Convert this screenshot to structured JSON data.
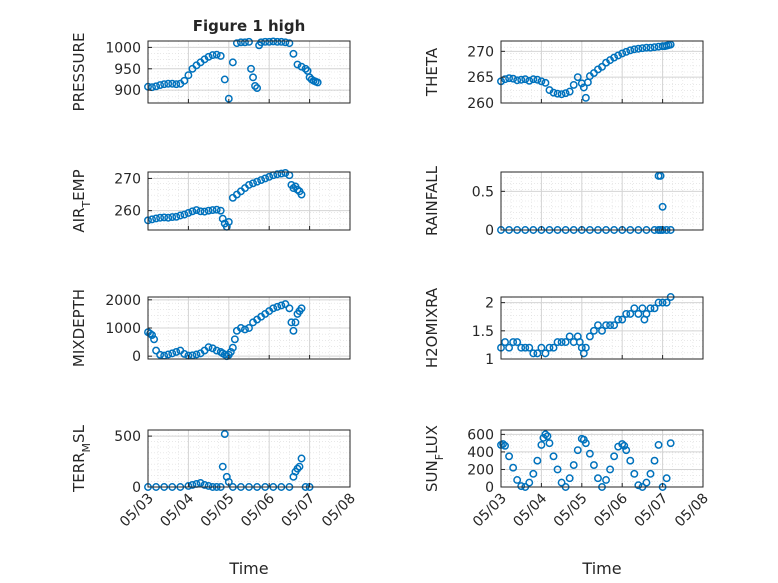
{
  "chart_data": [
    {
      "id": "pressure",
      "type": "scatter",
      "title": "Figure 1 high",
      "ylabel": "PRESSURE",
      "ylabel_sub": "",
      "ylabel_suffix": "",
      "xlabel": "",
      "xlim": [
        0,
        5
      ],
      "ylim": [
        870,
        1015
      ],
      "yticks": [
        900,
        950,
        1000
      ],
      "ytick_labels": [
        "900",
        "950",
        "1000"
      ],
      "xticks": [
        0,
        1,
        2,
        3,
        4,
        5
      ],
      "xtick_labels": [],
      "x": [
        0.0,
        0.1,
        0.2,
        0.3,
        0.4,
        0.5,
        0.6,
        0.7,
        0.8,
        0.9,
        1.0,
        1.1,
        1.2,
        1.3,
        1.4,
        1.5,
        1.6,
        1.7,
        1.8,
        1.9,
        2.0,
        2.1,
        2.2,
        2.3,
        2.4,
        2.5,
        2.55,
        2.6,
        2.65,
        2.7,
        2.75,
        2.8,
        2.9,
        3.0,
        3.1,
        3.2,
        3.3,
        3.4,
        3.5,
        3.6,
        3.7,
        3.8,
        3.9,
        3.95,
        4.0,
        4.05,
        4.1,
        4.15,
        4.2
      ],
      "y": [
        908,
        907,
        909,
        912,
        914,
        915,
        915,
        914,
        915,
        922,
        935,
        950,
        958,
        965,
        972,
        978,
        982,
        983,
        980,
        925,
        880,
        965,
        1010,
        1012,
        1012,
        1013,
        950,
        930,
        910,
        905,
        1005,
        1012,
        1013,
        1013,
        1014,
        1013,
        1013,
        1012,
        1010,
        985,
        960,
        955,
        950,
        945,
        930,
        925,
        922,
        920,
        918
      ]
    },
    {
      "id": "theta",
      "type": "scatter",
      "title": "",
      "ylabel": "THETA",
      "ylabel_sub": "",
      "ylabel_suffix": "",
      "xlabel": "",
      "xlim": [
        0,
        5
      ],
      "ylim": [
        260,
        272
      ],
      "yticks": [
        260,
        265,
        270
      ],
      "ytick_labels": [
        "260",
        "265",
        "270"
      ],
      "xticks": [
        0,
        1,
        2,
        3,
        4,
        5
      ],
      "xtick_labels": [],
      "x": [
        0.0,
        0.1,
        0.2,
        0.3,
        0.4,
        0.5,
        0.6,
        0.7,
        0.8,
        0.9,
        1.0,
        1.1,
        1.2,
        1.3,
        1.4,
        1.5,
        1.6,
        1.7,
        1.8,
        1.9,
        2.0,
        2.05,
        2.1,
        2.15,
        2.2,
        2.3,
        2.4,
        2.5,
        2.6,
        2.7,
        2.8,
        2.9,
        3.0,
        3.1,
        3.2,
        3.3,
        3.4,
        3.5,
        3.6,
        3.7,
        3.8,
        3.9,
        4.0,
        4.05,
        4.1,
        4.15,
        4.2
      ],
      "y": [
        264.2,
        264.6,
        264.8,
        264.7,
        264.4,
        264.5,
        264.6,
        264.3,
        264.6,
        264.5,
        264.2,
        263.9,
        262.5,
        262.0,
        261.8,
        261.7,
        261.9,
        262.2,
        263.5,
        265.0,
        263.8,
        263.0,
        261.0,
        264.0,
        265.2,
        265.8,
        266.5,
        267.0,
        267.8,
        268.3,
        268.8,
        269.2,
        269.6,
        269.9,
        270.2,
        270.4,
        270.5,
        270.6,
        270.7,
        270.7,
        270.8,
        270.9,
        271.0,
        271.0,
        271.1,
        271.2,
        271.3
      ]
    },
    {
      "id": "air_temp",
      "type": "scatter",
      "title": "",
      "ylabel": "AIR",
      "ylabel_sub": "T",
      "ylabel_suffix": "EMP",
      "xlabel": "",
      "xlim": [
        0,
        5
      ],
      "ylim": [
        254,
        272
      ],
      "yticks": [
        260,
        270
      ],
      "ytick_labels": [
        "260",
        "270"
      ],
      "xticks": [
        0,
        1,
        2,
        3,
        4,
        5
      ],
      "xtick_labels": [],
      "x": [
        0.0,
        0.1,
        0.2,
        0.3,
        0.4,
        0.5,
        0.6,
        0.7,
        0.8,
        0.9,
        1.0,
        1.1,
        1.2,
        1.3,
        1.4,
        1.5,
        1.6,
        1.7,
        1.8,
        1.85,
        1.9,
        1.95,
        2.0,
        2.1,
        2.2,
        2.3,
        2.4,
        2.5,
        2.6,
        2.7,
        2.8,
        2.9,
        3.0,
        3.1,
        3.2,
        3.3,
        3.4,
        3.5,
        3.55,
        3.6,
        3.65,
        3.7,
        3.75,
        3.8
      ],
      "y": [
        257.0,
        257.3,
        257.6,
        257.8,
        257.9,
        257.8,
        258.0,
        258.1,
        258.5,
        258.8,
        259.3,
        259.8,
        260.2,
        259.8,
        259.7,
        260.0,
        260.2,
        260.3,
        260.0,
        257.5,
        256.0,
        255.0,
        256.5,
        264.0,
        265.0,
        266.0,
        267.0,
        268.0,
        268.5,
        269.0,
        269.5,
        270.0,
        270.5,
        271.0,
        271.3,
        271.5,
        271.7,
        271.0,
        268.0,
        267.0,
        267.5,
        266.5,
        266.0,
        265.0
      ]
    },
    {
      "id": "rainfall",
      "type": "scatter",
      "title": "",
      "ylabel": "RAINFALL",
      "ylabel_sub": "",
      "ylabel_suffix": "",
      "xlabel": "",
      "xlim": [
        0,
        5
      ],
      "ylim": [
        0,
        0.75
      ],
      "yticks": [
        0,
        0.5
      ],
      "ytick_labels": [
        "0",
        "0.5"
      ],
      "xticks": [
        0,
        1,
        2,
        3,
        4,
        5
      ],
      "xtick_labels": [],
      "x": [
        0.0,
        0.2,
        0.4,
        0.6,
        0.8,
        1.0,
        1.2,
        1.4,
        1.6,
        1.8,
        2.0,
        2.2,
        2.4,
        2.6,
        2.8,
        3.0,
        3.2,
        3.4,
        3.6,
        3.8,
        3.9,
        3.95,
        4.0,
        3.9,
        3.95,
        4.0,
        4.1,
        4.2
      ],
      "y": [
        0,
        0,
        0,
        0,
        0,
        0,
        0,
        0,
        0,
        0,
        0,
        0,
        0,
        0,
        0,
        0,
        0,
        0,
        0,
        0,
        0,
        0,
        0,
        0.7,
        0.7,
        0.3,
        0,
        0
      ]
    },
    {
      "id": "mixdepth",
      "type": "scatter",
      "title": "",
      "ylabel": "MIXDEPTH",
      "ylabel_sub": "",
      "ylabel_suffix": "",
      "xlabel": "",
      "xlim": [
        0,
        5
      ],
      "ylim": [
        -100,
        2100
      ],
      "yticks": [
        0,
        1000,
        2000
      ],
      "ytick_labels": [
        "0",
        "1000",
        "2000"
      ],
      "xticks": [
        0,
        1,
        2,
        3,
        4,
        5
      ],
      "xtick_labels": [],
      "x": [
        0.0,
        0.05,
        0.1,
        0.15,
        0.2,
        0.3,
        0.4,
        0.5,
        0.6,
        0.7,
        0.8,
        0.9,
        1.0,
        1.1,
        1.2,
        1.3,
        1.4,
        1.5,
        1.6,
        1.7,
        1.8,
        1.85,
        1.9,
        1.95,
        2.0,
        2.05,
        2.1,
        2.15,
        2.2,
        2.3,
        2.4,
        2.5,
        2.6,
        2.7,
        2.8,
        2.9,
        3.0,
        3.1,
        3.2,
        3.3,
        3.4,
        3.5,
        3.55,
        3.6,
        3.65,
        3.7,
        3.75,
        3.8
      ],
      "y": [
        850,
        800,
        750,
        600,
        200,
        50,
        20,
        60,
        100,
        150,
        200,
        80,
        20,
        30,
        60,
        100,
        200,
        320,
        280,
        200,
        150,
        100,
        60,
        0,
        50,
        150,
        300,
        600,
        900,
        1000,
        950,
        1000,
        1200,
        1300,
        1400,
        1500,
        1600,
        1700,
        1750,
        1800,
        1850,
        1700,
        1200,
        900,
        1200,
        1500,
        1600,
        1700
      ]
    },
    {
      "id": "h2omixra",
      "type": "scatter",
      "title": "",
      "ylabel": "H2OMIXRA",
      "ylabel_sub": "",
      "ylabel_suffix": "",
      "xlabel": "",
      "xlim": [
        0,
        5
      ],
      "ylim": [
        1,
        2.1
      ],
      "yticks": [
        1,
        1.5,
        2
      ],
      "ytick_labels": [
        "1",
        "1.5",
        "2"
      ],
      "xticks": [
        0,
        1,
        2,
        3,
        4,
        5
      ],
      "xtick_labels": [],
      "x": [
        0.0,
        0.1,
        0.2,
        0.3,
        0.4,
        0.5,
        0.6,
        0.7,
        0.8,
        0.9,
        1.0,
        1.1,
        1.2,
        1.3,
        1.4,
        1.5,
        1.6,
        1.7,
        1.8,
        1.9,
        1.95,
        2.0,
        2.05,
        2.1,
        2.2,
        2.3,
        2.4,
        2.5,
        2.6,
        2.7,
        2.8,
        2.9,
        3.0,
        3.1,
        3.2,
        3.3,
        3.4,
        3.5,
        3.55,
        3.6,
        3.7,
        3.8,
        3.9,
        4.0,
        4.1,
        4.2
      ],
      "y": [
        1.2,
        1.3,
        1.2,
        1.3,
        1.3,
        1.2,
        1.2,
        1.2,
        1.1,
        1.1,
        1.2,
        1.1,
        1.2,
        1.2,
        1.3,
        1.3,
        1.3,
        1.4,
        1.3,
        1.4,
        1.3,
        1.2,
        1.1,
        1.2,
        1.4,
        1.5,
        1.6,
        1.5,
        1.6,
        1.6,
        1.6,
        1.7,
        1.7,
        1.8,
        1.8,
        1.9,
        1.8,
        1.9,
        1.7,
        1.8,
        1.9,
        1.9,
        2.0,
        2.0,
        2.0,
        2.1
      ]
    },
    {
      "id": "terr_msl",
      "type": "scatter",
      "title": "",
      "ylabel": "TERR",
      "ylabel_sub": "M",
      "ylabel_suffix": "SL",
      "xlabel": "Time",
      "xlim": [
        0,
        5
      ],
      "ylim": [
        0,
        560
      ],
      "yticks": [
        0,
        500
      ],
      "ytick_labels": [
        "0",
        "500"
      ],
      "xticks": [
        0,
        1,
        2,
        3,
        4,
        5
      ],
      "xtick_labels": [
        "05/03",
        "05/04",
        "05/05",
        "05/06",
        "05/07",
        "05/08"
      ],
      "x": [
        0.0,
        0.2,
        0.4,
        0.6,
        0.8,
        1.0,
        1.1,
        1.2,
        1.3,
        1.4,
        1.5,
        1.6,
        1.7,
        1.8,
        1.85,
        1.9,
        1.95,
        2.0,
        2.1,
        2.3,
        2.5,
        2.7,
        2.9,
        3.1,
        3.3,
        3.5,
        3.6,
        3.65,
        3.7,
        3.75,
        3.8,
        3.9,
        4.0
      ],
      "y": [
        0,
        0,
        0,
        0,
        0,
        10,
        20,
        30,
        40,
        20,
        10,
        0,
        0,
        0,
        200,
        520,
        100,
        50,
        0,
        0,
        0,
        0,
        0,
        0,
        0,
        0,
        100,
        150,
        180,
        200,
        280,
        0,
        0
      ]
    },
    {
      "id": "sun_flux",
      "type": "scatter",
      "title": "",
      "ylabel": "SUN",
      "ylabel_sub": "F",
      "ylabel_suffix": "LUX",
      "xlabel": "Time",
      "xlim": [
        0,
        5
      ],
      "ylim": [
        0,
        650
      ],
      "yticks": [
        0,
        200,
        400,
        600
      ],
      "ytick_labels": [
        "0",
        "200",
        "400",
        "600"
      ],
      "xticks": [
        0,
        1,
        2,
        3,
        4,
        5
      ],
      "xtick_labels": [
        "05/03",
        "05/04",
        "05/05",
        "05/06",
        "05/07",
        "05/08"
      ],
      "x": [
        0.0,
        0.05,
        0.1,
        0.2,
        0.3,
        0.4,
        0.5,
        0.6,
        0.7,
        0.8,
        0.9,
        1.0,
        1.05,
        1.1,
        1.15,
        1.2,
        1.3,
        1.4,
        1.5,
        1.6,
        1.7,
        1.8,
        1.9,
        2.0,
        2.05,
        2.1,
        2.2,
        2.3,
        2.4,
        2.5,
        2.6,
        2.7,
        2.8,
        2.9,
        3.0,
        3.05,
        3.1,
        3.2,
        3.3,
        3.4,
        3.5,
        3.6,
        3.7,
        3.8,
        3.9,
        4.0,
        4.1,
        4.2
      ],
      "y": [
        480,
        490,
        470,
        350,
        220,
        80,
        10,
        0,
        50,
        150,
        300,
        480,
        560,
        600,
        580,
        500,
        350,
        200,
        50,
        0,
        100,
        250,
        420,
        550,
        540,
        500,
        380,
        250,
        100,
        0,
        80,
        200,
        350,
        460,
        490,
        470,
        420,
        300,
        150,
        20,
        0,
        50,
        150,
        300,
        480,
        0,
        100,
        500
      ]
    }
  ]
}
